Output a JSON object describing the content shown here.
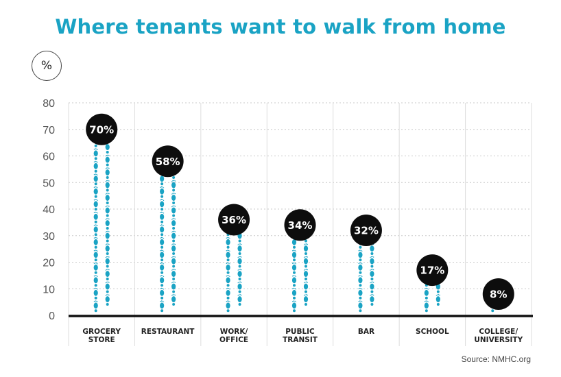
{
  "title": "Where tenants want to walk from home",
  "unit": "%",
  "source": "Source: NMHC.org",
  "colors": {
    "title": "#1aa3c4",
    "footprint": "#1aa3c4",
    "badge": "#0d0d0d",
    "axis": "#111111",
    "grid": "#c8c8c8"
  },
  "icons": {
    "bar_mark": "footprint-icon"
  },
  "chart_data": {
    "type": "bar",
    "categories": [
      [
        "GROCERY",
        "STORE"
      ],
      [
        "RESTAURANT"
      ],
      [
        "WORK/",
        "OFFICE"
      ],
      [
        "PUBLIC",
        "TRANSIT"
      ],
      [
        "BAR"
      ],
      [
        "SCHOOL"
      ],
      [
        "COLLEGE/",
        "UNIVERSITY"
      ]
    ],
    "values": [
      70,
      58,
      36,
      34,
      32,
      17,
      8
    ],
    "data_labels": [
      "70%",
      "58%",
      "36%",
      "34%",
      "32%",
      "17%",
      "8%"
    ],
    "yticks": [
      "0",
      "10",
      "20",
      "30",
      "40",
      "50",
      "60",
      "70",
      "80"
    ],
    "ylim": [
      0,
      80
    ],
    "grid": true,
    "legend": false
  }
}
